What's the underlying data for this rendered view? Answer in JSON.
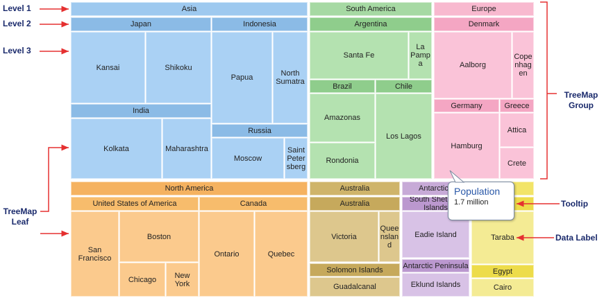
{
  "annotations": {
    "level1": "Level 1",
    "level2": "Level 2",
    "level3": "Level 3",
    "leaf": "TreeMap Leaf",
    "group": "TreeMap Group",
    "tooltip": "Tooltip",
    "data_label": "Data Label"
  },
  "tooltip": {
    "title": "Population",
    "value": "1.7 million"
  },
  "treemap": [
    {
      "name": "Asia",
      "children": [
        {
          "name": "Japan",
          "leaves": [
            "Kansai",
            "Shikoku"
          ]
        },
        {
          "name": "Indonesia",
          "leaves": [
            "Papua",
            "North Sumatra"
          ]
        },
        {
          "name": "India",
          "leaves": [
            "Kolkata",
            "Maharashtra"
          ]
        },
        {
          "name": "Russia",
          "leaves": [
            "Moscow",
            "Saint Petersberg"
          ]
        }
      ]
    },
    {
      "name": "South America",
      "children": [
        {
          "name": "Argentina",
          "leaves": [
            "Santa Fe",
            "La Pampa"
          ]
        },
        {
          "name": "Brazil",
          "leaves": [
            "Amazonas",
            "Rondonia"
          ]
        },
        {
          "name": "Chile",
          "leaves": [
            "Los Lagos"
          ]
        }
      ]
    },
    {
      "name": "Europe",
      "children": [
        {
          "name": "Denmark",
          "leaves": [
            "Aalborg",
            "Copenhagen"
          ]
        },
        {
          "name": "Germany",
          "leaves": [
            "Hamburg"
          ]
        },
        {
          "name": "Greece",
          "leaves": [
            "Attica",
            "Crete"
          ]
        }
      ]
    },
    {
      "name": "North America",
      "children": [
        {
          "name": "United States of America",
          "leaves": [
            "San Francisco",
            "Boston",
            "Chicago",
            "New York"
          ]
        },
        {
          "name": "Canada",
          "leaves": [
            "Ontario",
            "Quebec"
          ]
        }
      ]
    },
    {
      "name": "Australia",
      "children": [
        {
          "name": "Australia",
          "leaves": [
            "Victoria",
            "Queensland"
          ]
        },
        {
          "name": "Solomon Islands",
          "leaves": [
            "Guadalcanal"
          ]
        }
      ]
    },
    {
      "name": "Antarctica",
      "children": [
        {
          "name": "South Shetland Islands",
          "leaves": [
            "Eadie Island"
          ]
        },
        {
          "name": "Antarctic Peninsula",
          "leaves": [
            "Eklund Islands"
          ]
        }
      ]
    },
    {
      "children": [
        {
          "leaves": [
            "Taraba"
          ]
        },
        {
          "name": "Egypt",
          "leaves": [
            "Cairo"
          ]
        }
      ]
    }
  ]
}
